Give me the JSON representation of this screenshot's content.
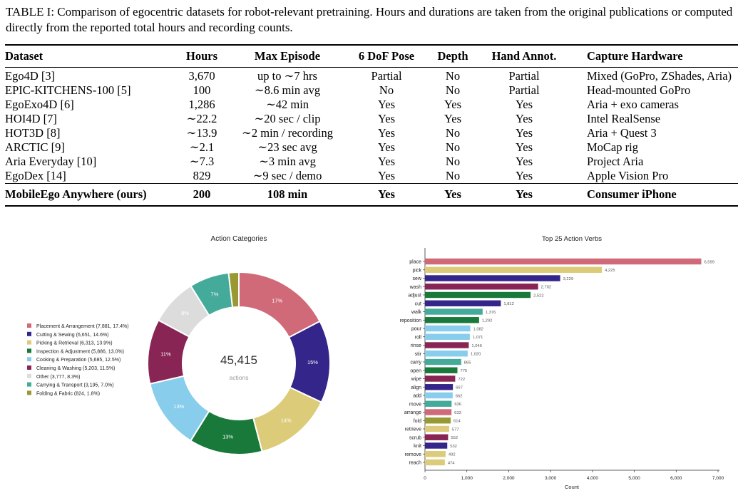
{
  "caption": "TABLE I: Comparison of egocentric datasets for robot-relevant pretraining. Hours and durations are taken from the original publications or computed directly from the reported total hours and recording counts.",
  "table": {
    "headers": [
      "Dataset",
      "Hours",
      "Max Episode",
      "6 DoF Pose",
      "Depth",
      "Hand Annot.",
      "Capture Hardware"
    ],
    "rows": [
      [
        "Ego4D [3]",
        "3,670",
        "up to ∼7 hrs",
        "Partial",
        "No",
        "Partial",
        "Mixed (GoPro, ZShades, Aria)"
      ],
      [
        "EPIC-KITCHENS-100 [5]",
        "100",
        "∼8.6 min avg",
        "No",
        "No",
        "Partial",
        "Head-mounted GoPro"
      ],
      [
        "EgoExo4D [6]",
        "1,286",
        "∼42 min",
        "Yes",
        "Yes",
        "Yes",
        "Aria + exo cameras"
      ],
      [
        "HOI4D [7]",
        "∼22.2",
        "∼20 sec / clip",
        "Yes",
        "Yes",
        "Yes",
        "Intel RealSense"
      ],
      [
        "HOT3D [8]",
        "∼13.9",
        "∼2 min / recording",
        "Yes",
        "No",
        "Yes",
        "Aria + Quest 3"
      ],
      [
        "ARCTIC [9]",
        "∼2.1",
        "∼23 sec avg",
        "Yes",
        "No",
        "Yes",
        "MoCap rig"
      ],
      [
        "Aria Everyday [10]",
        "∼7.3",
        "∼3 min avg",
        "Yes",
        "No",
        "Yes",
        "Project Aria"
      ],
      [
        "EgoDex [14]",
        "829",
        "∼9 sec / demo",
        "Yes",
        "No",
        "Yes",
        "Apple Vision Pro"
      ]
    ],
    "ours": [
      "MobileEgo Anywhere (ours)",
      "200",
      "108 min",
      "Yes",
      "Yes",
      "Yes",
      "Consumer iPhone"
    ]
  },
  "chart_data": [
    {
      "type": "pie",
      "title": "Action Categories",
      "center_value": "45,415",
      "center_label": "actions",
      "slices": [
        {
          "label": "Placement & Arrangement (7,881, 17.4%)",
          "value": 7881,
          "pct_label": "17%",
          "color": "#d16a78"
        },
        {
          "label": "Cutting & Sewing (6,651, 14.6%)",
          "value": 6651,
          "pct_label": "15%",
          "color": "#332589"
        },
        {
          "label": "Picking & Retrieval (6,313, 13.9%)",
          "value": 6313,
          "pct_label": "14%",
          "color": "#dccb78"
        },
        {
          "label": "Inspection & Adjustment (5,886, 13.0%)",
          "value": 5886,
          "pct_label": "13%",
          "color": "#18793a"
        },
        {
          "label": "Cooking & Preparation (5,685, 12.5%)",
          "value": 5685,
          "pct_label": "13%",
          "color": "#88cdec"
        },
        {
          "label": "Cleaning & Washing (5,203, 11.5%)",
          "value": 5203,
          "pct_label": "11%",
          "color": "#882554"
        },
        {
          "label": "Other (3,777, 8.3%)",
          "value": 3777,
          "pct_label": "8%",
          "color": "#dcdcdc"
        },
        {
          "label": "Carrying & Transport (3,195, 7.0%)",
          "value": 3195,
          "pct_label": "7%",
          "color": "#44aa99"
        },
        {
          "label": "Folding & Fabric (824, 1.8%)",
          "value": 824,
          "pct_label": "",
          "color": "#999933"
        }
      ]
    },
    {
      "type": "bar",
      "orientation": "horizontal",
      "title": "Top 25 Action Verbs",
      "xlabel": "Count",
      "xlim": [
        0,
        7000
      ],
      "xticks": [
        0,
        1000,
        2000,
        3000,
        4000,
        5000,
        6000,
        7000
      ],
      "xtick_labels": [
        "0",
        "1,000",
        "2,000",
        "3,000",
        "4,000",
        "5,000",
        "6,000",
        "7,000"
      ],
      "categories": [
        "place",
        "pick",
        "sew",
        "wash",
        "adjust",
        "cut",
        "walk",
        "reposition",
        "pour",
        "roll",
        "rinse",
        "stir",
        "carry",
        "open",
        "wipe",
        "align",
        "add",
        "move",
        "arrange",
        "fold",
        "retrieve",
        "scrub",
        "knit",
        "remove",
        "reach"
      ],
      "values": [
        6599,
        4225,
        3229,
        2702,
        2522,
        1812,
        1376,
        1292,
        1082,
        1071,
        1046,
        1020,
        865,
        775,
        722,
        667,
        662,
        636,
        633,
        614,
        577,
        552,
        532,
        492,
        474
      ],
      "value_labels": [
        "6,599",
        "4,225",
        "3,229",
        "2,702",
        "2,522",
        "1,812",
        "1,376",
        "1,292",
        "1,082",
        "1,071",
        "1,046",
        "1,020",
        "865",
        "775",
        "722",
        "667",
        "662",
        "636",
        "633",
        "614",
        "577",
        "552",
        "532",
        "492",
        "474"
      ],
      "colors": [
        "#d16a78",
        "#dccb78",
        "#332589",
        "#882554",
        "#18793a",
        "#332589",
        "#44aa99",
        "#18793a",
        "#88cdec",
        "#88cdec",
        "#882554",
        "#88cdec",
        "#44aa99",
        "#18793a",
        "#882554",
        "#332589",
        "#88cdec",
        "#44aa99",
        "#d16a78",
        "#999933",
        "#dccb78",
        "#882554",
        "#332589",
        "#dccb78",
        "#dccb78"
      ]
    }
  ]
}
